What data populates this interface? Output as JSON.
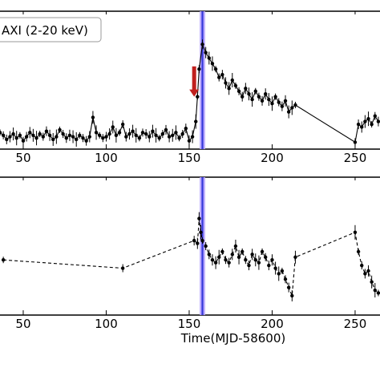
{
  "chart_data": [
    {
      "type": "scatter",
      "panel": "top",
      "legend_label": "AXI (2-20 keV)",
      "legend_placement": "top-left",
      "xlabel": "",
      "ylabel": "",
      "xlim": [
        36,
        265
      ],
      "ylim": [
        0,
        100
      ],
      "x_ticks": [
        50,
        100,
        150,
        200,
        250
      ],
      "x_tick_labels": [
        "50",
        "100",
        "150",
        "200",
        "250"
      ],
      "grid": false,
      "line_style": "solid",
      "marker": "circle",
      "vertical_band_x": 158,
      "annotation_arrow": {
        "x": 153,
        "y_from": 60,
        "y_to": 38,
        "color": "#c0201e"
      },
      "series": [
        {
          "x": [
            36,
            38,
            40,
            42,
            44,
            46,
            48,
            50,
            52,
            54,
            56,
            58,
            60,
            62,
            64,
            66,
            68,
            70,
            72,
            74,
            76,
            78,
            80,
            82,
            84,
            86,
            88,
            90,
            92,
            94,
            96,
            98,
            100,
            102,
            104,
            106,
            108,
            110,
            112,
            114,
            116,
            118,
            120,
            122,
            124,
            126,
            128,
            130,
            132,
            134,
            136,
            138,
            140,
            142,
            144,
            146,
            148,
            150,
            152,
            154,
            155,
            156,
            158,
            160,
            162,
            164,
            166,
            168,
            170,
            172,
            174,
            176,
            178,
            180,
            182,
            184,
            186,
            188,
            190,
            192,
            194,
            196,
            198,
            200,
            202,
            204,
            206,
            208,
            210,
            212,
            214,
            250,
            252,
            254,
            256,
            258,
            260,
            262,
            264
          ],
          "y": [
            12,
            10,
            7,
            9,
            11,
            8,
            10,
            6,
            9,
            12,
            10,
            8,
            11,
            9,
            13,
            10,
            7,
            9,
            14,
            11,
            8,
            10,
            9,
            7,
            10,
            8,
            6,
            9,
            23,
            12,
            10,
            8,
            9,
            11,
            16,
            10,
            12,
            18,
            9,
            11,
            13,
            10,
            8,
            12,
            11,
            9,
            13,
            10,
            8,
            11,
            14,
            9,
            10,
            12,
            8,
            11,
            15,
            6,
            9,
            20,
            38,
            58,
            76,
            70,
            66,
            62,
            58,
            52,
            54,
            48,
            44,
            50,
            46,
            42,
            38,
            44,
            40,
            36,
            42,
            38,
            35,
            40,
            36,
            33,
            38,
            34,
            31,
            35,
            27,
            30,
            32,
            5,
            18,
            16,
            20,
            22,
            18,
            24,
            20
          ]
        }
      ]
    },
    {
      "type": "scatter",
      "panel": "bottom",
      "xlabel": "Time(MJD-58600)",
      "ylabel": "",
      "xlim": [
        36,
        265
      ],
      "ylim": [
        0,
        100
      ],
      "x_ticks": [
        50,
        100,
        150,
        200,
        250
      ],
      "x_tick_labels": [
        "50",
        "100",
        "150",
        "200",
        "250"
      ],
      "grid": false,
      "line_style": "dashed",
      "marker": "circle",
      "vertical_band_x": 158,
      "series": [
        {
          "x": [
            38,
            110,
            153,
            155,
            156,
            157,
            158,
            160,
            162,
            164,
            166,
            168,
            170,
            172,
            174,
            176,
            178,
            180,
            182,
            184,
            186,
            188,
            190,
            192,
            194,
            196,
            198,
            200,
            202,
            204,
            206,
            208,
            210,
            212,
            214,
            250,
            252,
            254,
            256,
            258,
            260,
            262,
            264
          ],
          "y": [
            40,
            34,
            54,
            52,
            70,
            60,
            54,
            50,
            44,
            40,
            38,
            42,
            46,
            40,
            38,
            44,
            50,
            42,
            46,
            40,
            36,
            44,
            40,
            38,
            46,
            42,
            36,
            40,
            34,
            30,
            32,
            26,
            20,
            14,
            42,
            60,
            46,
            36,
            30,
            32,
            24,
            18,
            16
          ]
        }
      ]
    }
  ]
}
